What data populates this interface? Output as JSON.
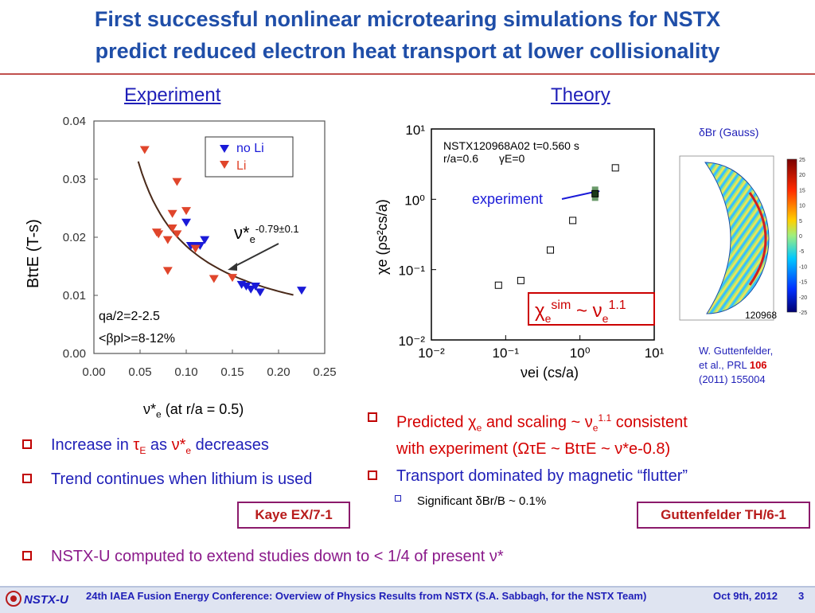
{
  "title": {
    "line1": "First successful nonlinear microtearing simulations for NSTX",
    "line2": "predict reduced electron heat transport at lower collisionality"
  },
  "sections": {
    "left": "Experiment",
    "right": "Theory"
  },
  "experiment_chart": {
    "legend": [
      "no Li",
      "Li"
    ],
    "ylabel": "BtτE (T-s)",
    "xlabel_main": "ν*",
    "xlabel_sub": "e",
    "xlabel_rest": "(at r/a = 0.5)",
    "fit_label_nu": "ν*",
    "fit_label_sub": "e",
    "fit_label_exp": "-0.79±0.1",
    "note1": "qa/2=2-2.5",
    "note2": "<βpl>=8-12%",
    "y_ticks": [
      "0.04",
      "0.03",
      "0.02",
      "0.01",
      "0.00"
    ],
    "x_ticks": [
      "0.00",
      "0.05",
      "0.10",
      "0.15",
      "0.20",
      "0.25"
    ],
    "colors": {
      "no_li": "#1a1ad8",
      "li": "#e0452b"
    }
  },
  "theory_chart": {
    "annotation1": "NSTX120968A02 t=0.560 s",
    "annotation2": "r/a=0.6",
    "annotation3": "γE=0",
    "experiment_label": "experiment",
    "ylabel": "χe (ρs²cs/a)",
    "xlabel": "νei (cs/a)",
    "y_ticks": [
      "10¹",
      "10⁰",
      "10⁻¹",
      "10⁻²"
    ],
    "x_ticks": [
      "10⁻²",
      "10⁻¹",
      "10⁰",
      "10¹"
    ],
    "scaling_box": "χe^sim ~ νe^1.1"
  },
  "contour": {
    "title": "δBr (Gauss)",
    "shot": "120968",
    "colorbar_ticks": [
      "25",
      "20",
      "15",
      "10",
      "5",
      "0",
      "-5",
      "-10",
      "-15",
      "-20",
      "-25"
    ]
  },
  "citation": {
    "line1": "W. Guttenfelder,",
    "line2": "et al., PRL",
    "vol": "106",
    "line3": "(2011) 155004"
  },
  "left_bullets": {
    "b1_pre": "Increase in",
    "b1_tau": "τ",
    "b1_tau_sub": "E",
    "b1_as": "as",
    "b1_nu": "ν*",
    "b1_nu_sub": "e",
    "b1_post": "decreases",
    "b2": "Trend continues when lithium is used"
  },
  "right_bullets": {
    "b1_a": "Predicted",
    "b1_chi": "χ",
    "b1_chi_sub": "e",
    "b1_b": "and scaling ~",
    "b1_nu": "ν",
    "b1_nu_sub": "e",
    "b1_nu_sup": "1.1",
    "b1_c": "consistent",
    "b1_line2": "with experiment (ΩτE ~ BtτE ~ ν*e-0.8)",
    "b2": "Transport dominated by magnetic “flutter”",
    "b3": "Significant δBr/B ~ 0.1%"
  },
  "refs": {
    "left": "Kaye EX/7-1",
    "right": "Guttenfelder TH/6-1"
  },
  "bottom_bullet": "NSTX-U computed to extend studies down to < 1/4 of present ν*",
  "footer": {
    "logo": "NSTX-U",
    "text": "24th IAEA Fusion Energy Conference: Overview of Physics Results from NSTX (S.A. Sabbagh, for the NSTX Team)",
    "date": "Oct 9th, 2012",
    "page": "3"
  },
  "chart_data": [
    {
      "type": "scatter",
      "title": "",
      "xlabel": "ν*e (at r/a = 0.5)",
      "ylabel": "BtτE (T-s)",
      "xlim": [
        0,
        0.25
      ],
      "ylim": [
        0,
        0.04
      ],
      "series": [
        {
          "name": "no Li",
          "x": [
            0.1,
            0.105,
            0.11,
            0.115,
            0.12,
            0.16,
            0.165,
            0.17,
            0.175,
            0.18,
            0.225
          ],
          "y": [
            0.0225,
            0.0185,
            0.0185,
            0.0185,
            0.0195,
            0.0118,
            0.0115,
            0.011,
            0.0115,
            0.0105,
            0.0108
          ]
        },
        {
          "name": "Li",
          "x": [
            0.055,
            0.068,
            0.07,
            0.08,
            0.08,
            0.085,
            0.085,
            0.09,
            0.09,
            0.1,
            0.11,
            0.13,
            0.15
          ],
          "y": [
            0.035,
            0.0208,
            0.0205,
            0.0142,
            0.0195,
            0.0215,
            0.024,
            0.0295,
            0.0205,
            0.0245,
            0.018,
            0.0128,
            0.013
          ]
        }
      ]
    },
    {
      "type": "scatter",
      "title": "",
      "xlabel": "νei (cs/a)",
      "ylabel": "χe (ρs²cs/a)",
      "x_scale": "log",
      "y_scale": "log",
      "xlim": [
        0.01,
        10
      ],
      "ylim": [
        0.01,
        10
      ],
      "series": [
        {
          "x": [
            0.08,
            0.16,
            0.4,
            0.8,
            3.0
          ],
          "y": [
            0.06,
            0.07,
            0.19,
            0.5,
            2.8
          ]
        },
        {
          "x": [
            1.6
          ],
          "y": [
            1.2
          ]
        }
      ]
    }
  ]
}
